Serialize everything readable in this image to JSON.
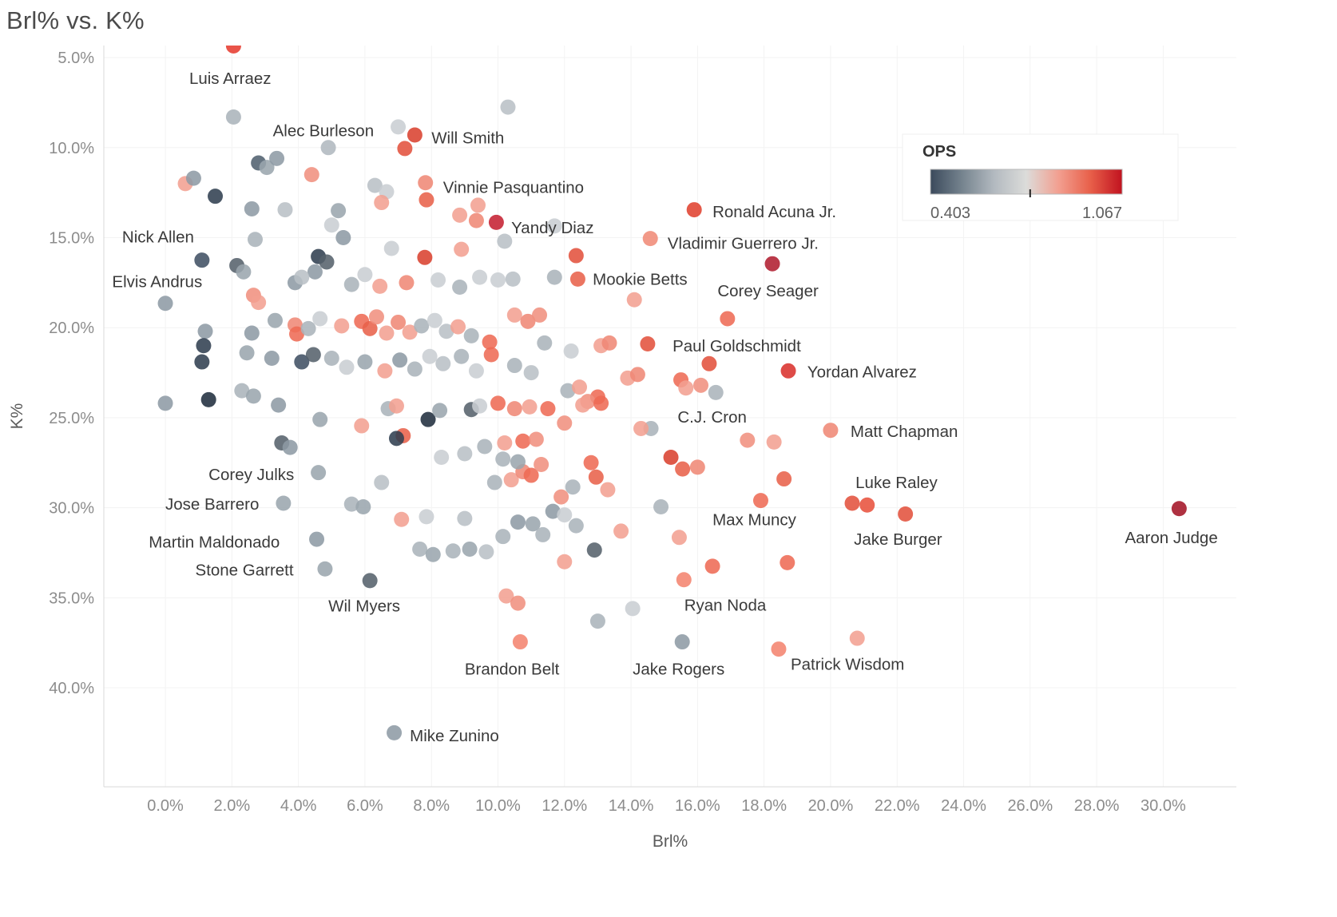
{
  "title": "Brl% vs. K%",
  "chart_data": {
    "type": "scatter",
    "title": "Brl% vs. K%",
    "xlabel": "Brl%",
    "ylabel": "K%",
    "x_axis": {
      "label": "Brl%",
      "min": -1.85,
      "max": 32.2,
      "ticks": [
        0,
        2,
        4,
        6,
        8,
        10,
        12,
        14,
        16,
        18,
        20,
        22,
        24,
        26,
        28,
        30
      ],
      "tick_labels": [
        "0.0%",
        "2.0%",
        "4.0%",
        "6.0%",
        "8.0%",
        "10.0%",
        "12.0%",
        "14.0%",
        "16.0%",
        "18.0%",
        "20.0%",
        "22.0%",
        "24.0%",
        "26.0%",
        "28.0%",
        "30.0%"
      ]
    },
    "y_axis": {
      "label": "K%",
      "min": 4.33,
      "max": 45.5,
      "inverted": true,
      "ticks": [
        5,
        10,
        15,
        20,
        25,
        30,
        35,
        40
      ],
      "tick_labels": [
        "5.0%",
        "10.0%",
        "15.0%",
        "20.0%",
        "25.0%",
        "30.0%",
        "35.0%",
        "40.0%"
      ]
    },
    "legend": {
      "title": "OPS",
      "min_label": "0.403",
      "max_label": "1.067",
      "tick_pos": 0.52,
      "gradient": [
        "#3b4a5c",
        "#76848f",
        "#b3bac0",
        "#dcdcda",
        "#f2a091",
        "#e8604a",
        "#c1121f"
      ]
    },
    "points": [
      [
        2.05,
        4.35,
        "#e63b2e"
      ],
      [
        10.3,
        7.75,
        "#b9c0c6"
      ],
      [
        2.05,
        8.3,
        "#aab3ba"
      ],
      [
        7.0,
        8.85,
        "#c9ced2"
      ],
      [
        7.2,
        10.05,
        "#e2503c"
      ],
      [
        7.5,
        9.3,
        "#d9402e"
      ],
      [
        4.9,
        10.0,
        "#b0b8bf"
      ],
      [
        2.8,
        10.85,
        "#4f5f6e"
      ],
      [
        3.05,
        11.1,
        "#9aa5ad"
      ],
      [
        3.35,
        10.6,
        "#8d9aa4"
      ],
      [
        4.4,
        11.5,
        "#f0907e"
      ],
      [
        0.6,
        12.0,
        "#f2a091"
      ],
      [
        0.85,
        11.7,
        "#8d9aa4"
      ],
      [
        1.5,
        12.7,
        "#2f3e4f"
      ],
      [
        6.3,
        12.1,
        "#b9c0c6"
      ],
      [
        6.65,
        12.45,
        "#c9ced2"
      ],
      [
        6.5,
        13.05,
        "#f2a091"
      ],
      [
        7.82,
        11.95,
        "#ef8775"
      ],
      [
        7.85,
        12.9,
        "#e8604a"
      ],
      [
        9.4,
        13.2,
        "#f2a091"
      ],
      [
        9.35,
        14.05,
        "#ef8775"
      ],
      [
        8.85,
        13.75,
        "#f2a091"
      ],
      [
        5.2,
        13.5,
        "#9aa5ad"
      ],
      [
        2.6,
        13.4,
        "#8d9aa4"
      ],
      [
        3.6,
        13.45,
        "#b9c0c6"
      ],
      [
        5.0,
        14.3,
        "#c9ced2"
      ],
      [
        5.35,
        15.0,
        "#8d9aa4"
      ],
      [
        2.7,
        15.1,
        "#aab3ba"
      ],
      [
        9.95,
        14.15,
        "#c41f30"
      ],
      [
        10.2,
        15.2,
        "#b9c0c6"
      ],
      [
        11.7,
        14.35,
        "#c9ced2"
      ],
      [
        15.9,
        13.45,
        "#e0402e"
      ],
      [
        14.58,
        15.05,
        "#f08a76"
      ],
      [
        12.35,
        16.0,
        "#e2503c"
      ],
      [
        12.4,
        17.3,
        "#e8604a"
      ],
      [
        18.25,
        16.45,
        "#b01c2e"
      ],
      [
        1.1,
        16.25,
        "#3f4f63"
      ],
      [
        0.0,
        18.65,
        "#8d9aa4"
      ],
      [
        0.0,
        24.2,
        "#8d9aa4"
      ],
      [
        1.2,
        20.2,
        "#8d9aa4"
      ],
      [
        1.15,
        21.0,
        "#2f3e4f"
      ],
      [
        1.1,
        21.9,
        "#2f3e4f"
      ],
      [
        1.3,
        24.0,
        "#1f2d3d"
      ],
      [
        2.15,
        16.55,
        "#55606b"
      ],
      [
        2.35,
        16.9,
        "#9aa5ad"
      ],
      [
        2.65,
        18.2,
        "#f0907e"
      ],
      [
        2.8,
        18.6,
        "#f2a091"
      ],
      [
        2.6,
        20.3,
        "#8d9aa4"
      ],
      [
        4.6,
        16.05,
        "#2f3e4f"
      ],
      [
        4.85,
        16.35,
        "#55606b"
      ],
      [
        4.5,
        16.9,
        "#8d9aa4"
      ],
      [
        3.9,
        17.5,
        "#8d9aa4"
      ],
      [
        4.1,
        17.2,
        "#b9c0c6"
      ],
      [
        5.6,
        17.6,
        "#aab3ba"
      ],
      [
        6.0,
        17.05,
        "#c9ced2"
      ],
      [
        6.45,
        17.7,
        "#f2a091"
      ],
      [
        6.8,
        15.6,
        "#c9ced2"
      ],
      [
        7.8,
        16.1,
        "#d9402e"
      ],
      [
        8.9,
        15.65,
        "#f2a091"
      ],
      [
        7.25,
        17.5,
        "#ef8775"
      ],
      [
        8.2,
        17.35,
        "#c9ced2"
      ],
      [
        8.85,
        17.75,
        "#aab3ba"
      ],
      [
        9.45,
        17.2,
        "#c9ced2"
      ],
      [
        10.0,
        17.35,
        "#c9ced2"
      ],
      [
        10.45,
        17.3,
        "#b9c0c6"
      ],
      [
        11.7,
        17.2,
        "#aab3ba"
      ],
      [
        14.1,
        18.45,
        "#f2a091"
      ],
      [
        16.9,
        19.5,
        "#ee6a54"
      ],
      [
        3.3,
        19.6,
        "#9aa5ad"
      ],
      [
        3.9,
        19.85,
        "#ef8775"
      ],
      [
        3.95,
        20.35,
        "#ee6a54"
      ],
      [
        4.3,
        20.05,
        "#aab3ba"
      ],
      [
        4.65,
        19.5,
        "#c9ced2"
      ],
      [
        5.3,
        19.9,
        "#f2a091"
      ],
      [
        5.9,
        19.65,
        "#ee6a54"
      ],
      [
        6.15,
        20.05,
        "#e8604a"
      ],
      [
        6.35,
        19.4,
        "#f0907e"
      ],
      [
        6.65,
        20.3,
        "#f2a091"
      ],
      [
        7.0,
        19.7,
        "#ef8775"
      ],
      [
        7.35,
        20.25,
        "#f2a091"
      ],
      [
        7.7,
        19.9,
        "#aab3ba"
      ],
      [
        8.1,
        19.6,
        "#c9ced2"
      ],
      [
        8.45,
        20.2,
        "#b9c0c6"
      ],
      [
        8.8,
        19.95,
        "#f2a091"
      ],
      [
        9.2,
        20.45,
        "#aab3ba"
      ],
      [
        9.75,
        20.8,
        "#ee6a54"
      ],
      [
        10.5,
        19.3,
        "#f2a091"
      ],
      [
        10.9,
        19.65,
        "#ef8775"
      ],
      [
        11.25,
        19.3,
        "#f0907e"
      ],
      [
        14.5,
        20.9,
        "#e2503c"
      ],
      [
        13.1,
        21.0,
        "#f2a091"
      ],
      [
        13.35,
        20.85,
        "#ef8775"
      ],
      [
        12.2,
        21.3,
        "#c9ced2"
      ],
      [
        11.4,
        20.85,
        "#aab3ba"
      ],
      [
        16.35,
        22.0,
        "#e2503c"
      ],
      [
        18.73,
        22.4,
        "#d9302c"
      ],
      [
        2.45,
        21.4,
        "#9aa5ad"
      ],
      [
        3.2,
        21.7,
        "#8d9aa4"
      ],
      [
        4.1,
        21.9,
        "#3f4f63"
      ],
      [
        4.45,
        21.5,
        "#55606b"
      ],
      [
        5.0,
        21.7,
        "#aab3ba"
      ],
      [
        5.45,
        22.2,
        "#c9ced2"
      ],
      [
        6.0,
        21.9,
        "#9aa5ad"
      ],
      [
        6.6,
        22.4,
        "#f2a091"
      ],
      [
        7.05,
        21.8,
        "#8d9aa4"
      ],
      [
        7.5,
        22.3,
        "#aab3ba"
      ],
      [
        7.95,
        21.6,
        "#c9ced2"
      ],
      [
        8.35,
        22.0,
        "#b9c0c6"
      ],
      [
        8.9,
        21.6,
        "#aab3ba"
      ],
      [
        9.35,
        22.4,
        "#c9ced2"
      ],
      [
        9.8,
        21.5,
        "#ee6a54"
      ],
      [
        10.5,
        22.1,
        "#aab3ba"
      ],
      [
        11.0,
        22.5,
        "#b9c0c6"
      ],
      [
        12.1,
        23.5,
        "#aab3ba"
      ],
      [
        12.45,
        23.3,
        "#f2a091"
      ],
      [
        13.0,
        23.85,
        "#ee6a54"
      ],
      [
        12.7,
        24.1,
        "#f0907e"
      ],
      [
        13.9,
        22.8,
        "#f2a091"
      ],
      [
        14.2,
        22.6,
        "#ef8775"
      ],
      [
        15.5,
        22.9,
        "#ee6a54"
      ],
      [
        15.65,
        23.35,
        "#f2a091"
      ],
      [
        16.1,
        23.2,
        "#f0907e"
      ],
      [
        16.55,
        23.6,
        "#aab3ba"
      ],
      [
        2.3,
        23.5,
        "#aab3ba"
      ],
      [
        2.65,
        23.8,
        "#9aa5ad"
      ],
      [
        3.4,
        24.3,
        "#8d9aa4"
      ],
      [
        4.65,
        25.1,
        "#9aa5ad"
      ],
      [
        5.9,
        25.45,
        "#f2a091"
      ],
      [
        6.7,
        24.5,
        "#aab3ba"
      ],
      [
        6.95,
        24.35,
        "#f2a091"
      ],
      [
        7.15,
        26.0,
        "#e8604a"
      ],
      [
        6.95,
        26.15,
        "#2f3e4f"
      ],
      [
        7.9,
        25.1,
        "#1f2d3d"
      ],
      [
        8.25,
        24.6,
        "#9aa5ad"
      ],
      [
        9.2,
        24.55,
        "#55606b"
      ],
      [
        9.45,
        24.35,
        "#c9ced2"
      ],
      [
        10.0,
        24.2,
        "#ee6a54"
      ],
      [
        10.5,
        24.5,
        "#ef8775"
      ],
      [
        10.95,
        24.4,
        "#f2a091"
      ],
      [
        11.5,
        24.5,
        "#ee6a54"
      ],
      [
        12.0,
        25.3,
        "#f0907e"
      ],
      [
        12.55,
        24.3,
        "#f2a091"
      ],
      [
        13.1,
        24.2,
        "#ee6a54"
      ],
      [
        14.6,
        25.6,
        "#aab3ba"
      ],
      [
        14.3,
        25.6,
        "#f2a091"
      ],
      [
        3.5,
        26.4,
        "#55606b"
      ],
      [
        3.75,
        26.65,
        "#8d9aa4"
      ],
      [
        15.2,
        27.2,
        "#d9402e"
      ],
      [
        15.55,
        27.85,
        "#e8604a"
      ],
      [
        16.0,
        27.75,
        "#ef8775"
      ],
      [
        17.5,
        26.25,
        "#f0907e"
      ],
      [
        18.3,
        26.35,
        "#f2a091"
      ],
      [
        20.0,
        25.7,
        "#ef8775"
      ],
      [
        18.6,
        28.4,
        "#e8604a"
      ],
      [
        17.9,
        29.6,
        "#ee6a54"
      ],
      [
        4.6,
        28.05,
        "#9aa5ad"
      ],
      [
        6.5,
        28.6,
        "#b9c0c6"
      ],
      [
        9.9,
        28.6,
        "#aab3ba"
      ],
      [
        10.4,
        28.45,
        "#f2a091"
      ],
      [
        10.75,
        28.0,
        "#ef8775"
      ],
      [
        11.0,
        28.2,
        "#ee6a54"
      ],
      [
        12.8,
        27.5,
        "#ee6a54"
      ],
      [
        12.95,
        28.3,
        "#e8604a"
      ],
      [
        10.15,
        27.3,
        "#aab3ba"
      ],
      [
        10.6,
        27.45,
        "#9aa5ad"
      ],
      [
        11.3,
        27.6,
        "#f0907e"
      ],
      [
        10.2,
        26.4,
        "#f2a091"
      ],
      [
        10.75,
        26.3,
        "#ee6a54"
      ],
      [
        11.15,
        26.2,
        "#f0907e"
      ],
      [
        9.6,
        26.6,
        "#aab3ba"
      ],
      [
        9.0,
        27.0,
        "#b9c0c6"
      ],
      [
        8.3,
        27.2,
        "#c9ced2"
      ],
      [
        13.3,
        29.0,
        "#f2a091"
      ],
      [
        12.25,
        28.85,
        "#aab3ba"
      ],
      [
        11.9,
        29.4,
        "#f0907e"
      ],
      [
        3.55,
        29.75,
        "#9aa5ad"
      ],
      [
        5.6,
        29.8,
        "#aab3ba"
      ],
      [
        5.95,
        29.95,
        "#9aa5ad"
      ],
      [
        7.1,
        30.65,
        "#f2a091"
      ],
      [
        7.85,
        30.5,
        "#c9ced2"
      ],
      [
        9.0,
        30.6,
        "#b9c0c6"
      ],
      [
        10.6,
        30.8,
        "#8d9aa4"
      ],
      [
        11.05,
        30.9,
        "#9aa5ad"
      ],
      [
        11.35,
        31.5,
        "#aab3ba"
      ],
      [
        11.65,
        30.2,
        "#8d9aa4"
      ],
      [
        12.0,
        30.4,
        "#c9ced2"
      ],
      [
        12.35,
        31.0,
        "#aab3ba"
      ],
      [
        13.7,
        31.3,
        "#f2a091"
      ],
      [
        14.9,
        29.95,
        "#aab3ba"
      ],
      [
        15.45,
        31.65,
        "#f2a091"
      ],
      [
        20.65,
        29.75,
        "#e2503c"
      ],
      [
        21.1,
        29.85,
        "#e8503c"
      ],
      [
        22.25,
        30.35,
        "#e2503c"
      ],
      [
        30.48,
        30.05,
        "#a31225"
      ],
      [
        4.55,
        31.75,
        "#8d9aa4"
      ],
      [
        4.8,
        33.4,
        "#9aa5ad"
      ],
      [
        6.15,
        34.05,
        "#55606b"
      ],
      [
        7.65,
        32.3,
        "#aab3ba"
      ],
      [
        8.05,
        32.6,
        "#9aa5ad"
      ],
      [
        8.65,
        32.4,
        "#aab3ba"
      ],
      [
        9.15,
        32.3,
        "#9aa5ad"
      ],
      [
        9.65,
        32.45,
        "#b9c0c6"
      ],
      [
        10.15,
        31.6,
        "#aab3ba"
      ],
      [
        12.9,
        32.35,
        "#55606b"
      ],
      [
        12.0,
        33.0,
        "#f2a091"
      ],
      [
        16.45,
        33.25,
        "#ee6a54"
      ],
      [
        18.7,
        33.05,
        "#ee6a54"
      ],
      [
        15.59,
        34.0,
        "#f4836e"
      ],
      [
        10.25,
        34.9,
        "#f2a091"
      ],
      [
        10.6,
        35.3,
        "#f0907e"
      ],
      [
        13.0,
        36.3,
        "#aab3ba"
      ],
      [
        14.05,
        35.6,
        "#c9ced2"
      ],
      [
        10.67,
        37.45,
        "#f4836e"
      ],
      [
        15.54,
        37.45,
        "#8d9aa4"
      ],
      [
        18.44,
        37.85,
        "#f4836e"
      ],
      [
        20.8,
        37.25,
        "#f2a091"
      ],
      [
        6.88,
        42.5,
        "#8d9aa4"
      ]
    ],
    "annotations": [
      {
        "text": "Luis Arraez",
        "x": 1.95,
        "y": 6.15,
        "anchor": "middle"
      },
      {
        "text": "Alec Burleson",
        "x": 4.75,
        "y": 9.05,
        "anchor": "middle"
      },
      {
        "text": "Will Smith",
        "x": 8.0,
        "y": 9.45,
        "anchor": "start"
      },
      {
        "text": "Vinnie Pasquantino",
        "x": 8.35,
        "y": 12.2,
        "anchor": "start"
      },
      {
        "text": "Ronald Acuna Jr.",
        "x": 16.45,
        "y": 13.55,
        "anchor": "start"
      },
      {
        "text": "Yandy Diaz",
        "x": 10.4,
        "y": 14.45,
        "anchor": "start"
      },
      {
        "text": "Vladimir Guerrero Jr.",
        "x": 15.1,
        "y": 15.3,
        "anchor": "start"
      },
      {
        "text": "Nick Allen",
        "x": -1.3,
        "y": 14.95,
        "anchor": "start"
      },
      {
        "text": "Elvis Andrus",
        "x": -1.6,
        "y": 17.45,
        "anchor": "start"
      },
      {
        "text": "Mookie Betts",
        "x": 12.85,
        "y": 17.3,
        "anchor": "start"
      },
      {
        "text": "Corey Seager",
        "x": 16.6,
        "y": 17.95,
        "anchor": "start"
      },
      {
        "text": "Paul Goldschmidt",
        "x": 15.25,
        "y": 21.0,
        "anchor": "start"
      },
      {
        "text": "Yordan Alvarez",
        "x": 19.3,
        "y": 22.45,
        "anchor": "start"
      },
      {
        "text": "C.J. Cron",
        "x": 15.4,
        "y": 24.95,
        "anchor": "start"
      },
      {
        "text": "Matt Chapman",
        "x": 20.6,
        "y": 25.75,
        "anchor": "start"
      },
      {
        "text": "Corey Julks",
        "x": 1.3,
        "y": 28.15,
        "anchor": "start"
      },
      {
        "text": "Luke Raley",
        "x": 20.75,
        "y": 28.6,
        "anchor": "start"
      },
      {
        "text": "Jose Barrero",
        "x": 0.0,
        "y": 29.8,
        "anchor": "start"
      },
      {
        "text": "Max Muncy",
        "x": 16.45,
        "y": 30.65,
        "anchor": "start"
      },
      {
        "text": "Jake Burger",
        "x": 20.7,
        "y": 31.75,
        "anchor": "start"
      },
      {
        "text": "Aaron Judge",
        "x": 28.85,
        "y": 31.65,
        "anchor": "start"
      },
      {
        "text": "Martin Maldonado",
        "x": -0.5,
        "y": 31.9,
        "anchor": "start"
      },
      {
        "text": "Stone Garrett",
        "x": 0.9,
        "y": 33.45,
        "anchor": "start"
      },
      {
        "text": "Wil Myers",
        "x": 4.9,
        "y": 35.45,
        "anchor": "start"
      },
      {
        "text": "Ryan Noda",
        "x": 15.6,
        "y": 35.4,
        "anchor": "start"
      },
      {
        "text": "Brandon Belt",
        "x": 9.0,
        "y": 38.95,
        "anchor": "start"
      },
      {
        "text": "Jake Rogers",
        "x": 14.05,
        "y": 38.95,
        "anchor": "start"
      },
      {
        "text": "Patrick Wisdom",
        "x": 18.8,
        "y": 38.7,
        "anchor": "start"
      },
      {
        "text": "Mike Zunino",
        "x": 7.35,
        "y": 42.65,
        "anchor": "start"
      }
    ]
  }
}
